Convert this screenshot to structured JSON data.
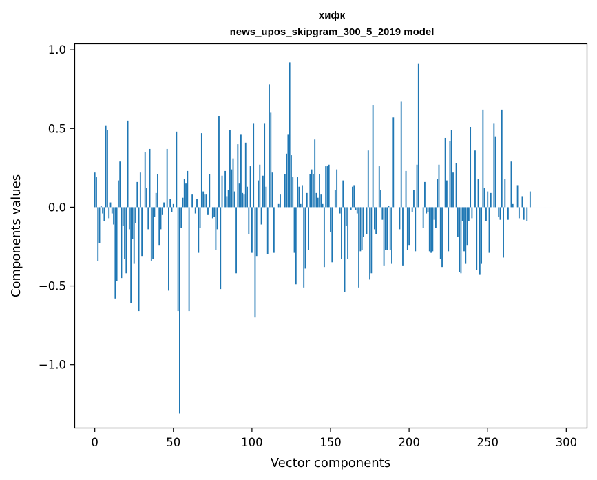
{
  "chart_data": {
    "type": "bar",
    "title": "хифк",
    "subtitle": "news_upos_skipgram_300_5_2019 model",
    "xlabel": "Vector components",
    "ylabel": "Components values",
    "xlim": [
      -13,
      313
    ],
    "ylim": [
      -1.4,
      1.04
    ],
    "xticks": [
      0,
      50,
      100,
      150,
      200,
      250,
      300
    ],
    "xtick_labels": [
      "0",
      "50",
      "100",
      "150",
      "200",
      "250",
      "300"
    ],
    "yticks": [
      1.0,
      0.5,
      0.0,
      -0.5,
      -1.0
    ],
    "ytick_labels": [
      "1.0",
      "0.5",
      "0.0",
      "−0.5",
      "−1.0"
    ],
    "grid": false,
    "color": "#1f77b4",
    "x_start": 0,
    "values": [
      0.22,
      0.19,
      -0.34,
      -0.23,
      0.01,
      -0.04,
      -0.09,
      0.52,
      0.49,
      -0.07,
      0.03,
      -0.04,
      -0.11,
      -0.58,
      -0.47,
      0.17,
      0.29,
      -0.45,
      -0.12,
      -0.33,
      -0.42,
      0.55,
      -0.14,
      -0.61,
      -0.2,
      -0.36,
      -0.1,
      0.16,
      -0.66,
      0.22,
      -0.31,
      0.0,
      0.35,
      0.12,
      -0.14,
      0.37,
      -0.34,
      -0.33,
      -0.06,
      0.09,
      0.21,
      -0.24,
      -0.14,
      -0.05,
      0.03,
      0.0,
      0.37,
      -0.53,
      0.05,
      -0.03,
      0.02,
      0.0,
      0.48,
      -0.66,
      -1.31,
      -0.13,
      0.06,
      0.18,
      0.15,
      0.23,
      -0.66,
      0.0,
      0.08,
      0.0,
      -0.04,
      0.05,
      -0.29,
      -0.13,
      0.47,
      0.1,
      0.08,
      0.08,
      -0.05,
      0.21,
      0.0,
      -0.07,
      -0.06,
      -0.27,
      -0.14,
      0.58,
      -0.52,
      0.2,
      0.0,
      0.23,
      0.07,
      0.11,
      0.49,
      0.24,
      0.31,
      0.1,
      -0.42,
      0.4,
      0.15,
      0.46,
      0.09,
      0.08,
      0.41,
      0.13,
      -0.17,
      0.26,
      -0.29,
      0.53,
      -0.7,
      -0.31,
      0.17,
      0.27,
      -0.11,
      0.2,
      0.53,
      0.13,
      -0.3,
      0.78,
      0.6,
      0.22,
      -0.29,
      0.0,
      0.0,
      0.02,
      0.08,
      0.0,
      0.0,
      0.21,
      0.34,
      0.46,
      0.92,
      0.33,
      0.19,
      -0.29,
      -0.49,
      0.19,
      0.13,
      0.02,
      0.14,
      -0.51,
      -0.39,
      0.09,
      -0.27,
      0.21,
      0.24,
      0.21,
      0.43,
      0.09,
      0.06,
      0.21,
      0.08,
      0.02,
      -0.38,
      0.26,
      0.26,
      0.27,
      -0.16,
      -0.35,
      0.0,
      0.11,
      0.24,
      0.0,
      -0.04,
      -0.33,
      0.17,
      -0.54,
      -0.12,
      -0.33,
      0.0,
      -0.02,
      0.13,
      0.14,
      -0.02,
      -0.04,
      -0.51,
      -0.28,
      -0.27,
      -0.19,
      0.0,
      -0.17,
      0.36,
      -0.46,
      -0.42,
      0.65,
      -0.14,
      -0.17,
      0.0,
      0.26,
      0.11,
      -0.08,
      -0.37,
      -0.27,
      -0.27,
      0.01,
      -0.27,
      -0.36,
      0.57,
      0.0,
      0.0,
      0.0,
      -0.14,
      0.67,
      -0.37,
      0.0,
      0.23,
      -0.27,
      -0.24,
      0.0,
      -0.03,
      0.11,
      -0.28,
      0.27,
      0.91,
      0.0,
      0.0,
      -0.13,
      0.16,
      -0.04,
      -0.03,
      -0.28,
      -0.29,
      -0.28,
      -0.08,
      -0.13,
      0.18,
      0.27,
      -0.33,
      -0.38,
      0.0,
      0.44,
      0.17,
      -0.28,
      0.42,
      0.49,
      0.22,
      0.0,
      0.28,
      -0.19,
      -0.41,
      -0.42,
      -0.09,
      -0.28,
      -0.36,
      -0.24,
      -0.09,
      0.51,
      -0.07,
      0.0,
      0.36,
      -0.4,
      0.18,
      -0.43,
      -0.36,
      0.62,
      0.12,
      -0.09,
      0.1,
      -0.29,
      0.09,
      0.0,
      0.53,
      0.45,
      0.0,
      -0.06,
      -0.08,
      0.62,
      -0.32,
      0.18,
      0.0,
      -0.08,
      0.0,
      0.29,
      0.02,
      0.0,
      0.0,
      0.14,
      -0.07,
      0.0,
      0.07,
      -0.08,
      0.0,
      -0.09,
      0.0,
      0.1,
      0.0,
      0.0,
      0.0,
      0.0,
      0.0,
      0.0,
      0.0,
      0.0,
      0.0,
      0.0,
      0.0,
      0.0,
      0.0,
      0.0
    ]
  }
}
